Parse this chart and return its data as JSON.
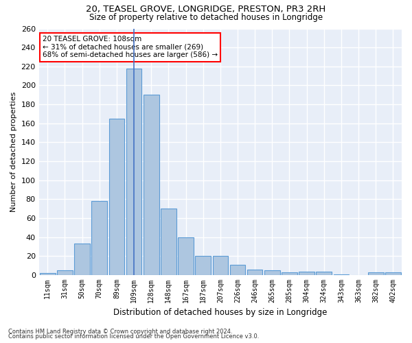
{
  "title1": "20, TEASEL GROVE, LONGRIDGE, PRESTON, PR3 2RH",
  "title2": "Size of property relative to detached houses in Longridge",
  "xlabel": "Distribution of detached houses by size in Longridge",
  "ylabel": "Number of detached properties",
  "categories": [
    "11sqm",
    "31sqm",
    "50sqm",
    "70sqm",
    "89sqm",
    "109sqm",
    "128sqm",
    "148sqm",
    "167sqm",
    "187sqm",
    "207sqm",
    "226sqm",
    "246sqm",
    "265sqm",
    "285sqm",
    "304sqm",
    "324sqm",
    "343sqm",
    "363sqm",
    "382sqm",
    "402sqm"
  ],
  "values": [
    2,
    5,
    33,
    78,
    165,
    218,
    190,
    70,
    40,
    20,
    20,
    11,
    6,
    5,
    3,
    4,
    4,
    1,
    0,
    3,
    3
  ],
  "bar_color": "#adc6e0",
  "bar_edge_color": "#5b9bd5",
  "highlight_index": 5,
  "highlight_line_color": "#4472c4",
  "annotation_text": "20 TEASEL GROVE: 108sqm\n← 31% of detached houses are smaller (269)\n68% of semi-detached houses are larger (586) →",
  "annotation_box_color": "white",
  "annotation_box_edge_color": "red",
  "footer1": "Contains HM Land Registry data © Crown copyright and database right 2024.",
  "footer2": "Contains public sector information licensed under the Open Government Licence v3.0.",
  "bg_color": "#e8eef8",
  "grid_color": "white",
  "ylim": [
    0,
    260
  ],
  "yticks": [
    0,
    20,
    40,
    60,
    80,
    100,
    120,
    140,
    160,
    180,
    200,
    220,
    240,
    260
  ]
}
